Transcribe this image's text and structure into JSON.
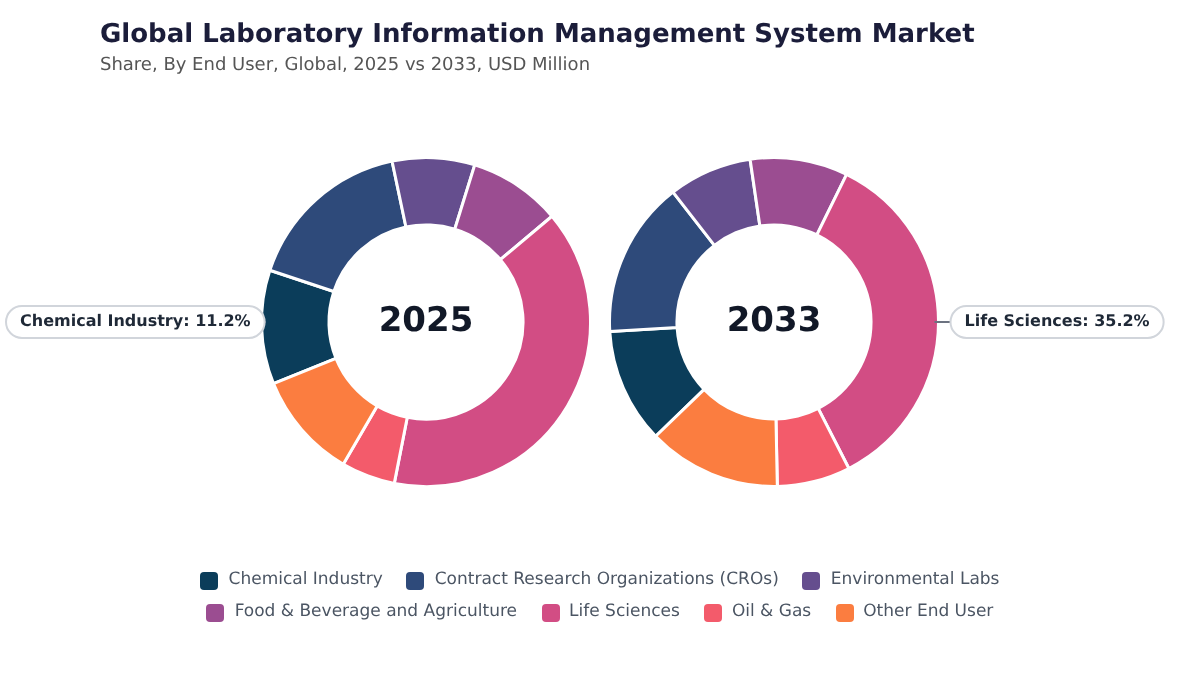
{
  "chart_data": {
    "type": "donut",
    "title": "Global Laboratory Information Management System Market",
    "subtitle": "Share, By End User, Global, 2025 vs 2033, USD Million",
    "categories": [
      "Chemical Industry",
      "Contract Research Organizations (CROs)",
      "Environmental Labs",
      "Food & Beverage and Agriculture",
      "Life Sciences",
      "Oil & Gas",
      "Other End User"
    ],
    "colors": [
      "#0b3d5a",
      "#2e4a7a",
      "#654e8e",
      "#9b4d91",
      "#d24d84",
      "#f35b6b",
      "#fb7d40"
    ],
    "series": [
      {
        "name": "2025",
        "values": [
          11.2,
          16.6,
          8.1,
          9.1,
          39.2,
          5.3,
          10.5
        ],
        "value_labels": [
          "Chemical Industry: 11.2%",
          null,
          null,
          null,
          null,
          null,
          null
        ]
      },
      {
        "name": "2033",
        "values": [
          11.3,
          15.4,
          8.2,
          9.6,
          35.2,
          7.2,
          13.1
        ],
        "value_labels": [
          null,
          null,
          null,
          null,
          "Life Sciences: 35.2%",
          null,
          null
        ]
      }
    ],
    "legend": "bottom"
  }
}
